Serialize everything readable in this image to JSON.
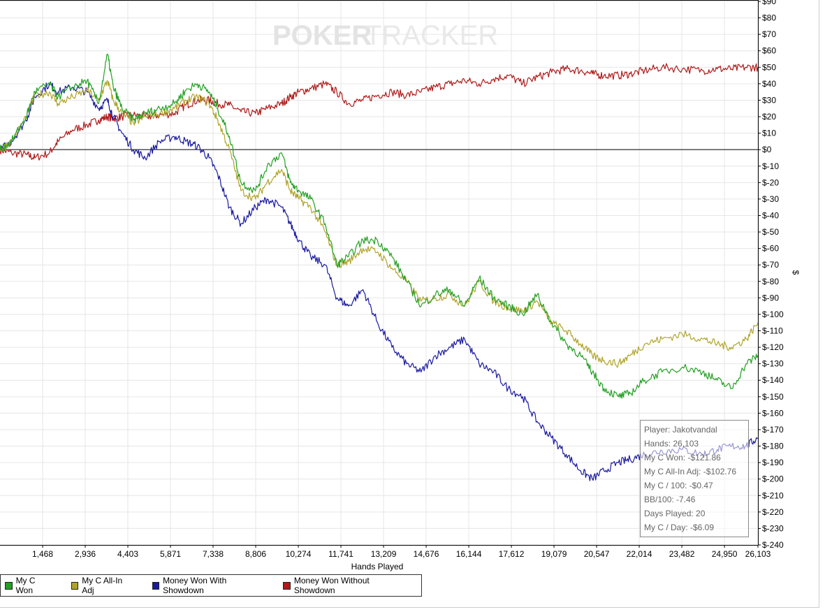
{
  "watermark": {
    "part1": "POKER",
    "part2": "TRACKER"
  },
  "chart_data": {
    "type": "line",
    "xlabel": "Hands Played",
    "ylabel": "$",
    "xlim": [
      0,
      26103
    ],
    "ylim": [
      -240,
      90
    ],
    "x_ticks": [
      "1,468",
      "2,936",
      "4,403",
      "5,871",
      "7,338",
      "8,806",
      "10,274",
      "11,741",
      "13,209",
      "14,676",
      "16,144",
      "17,612",
      "19,079",
      "20,547",
      "22,014",
      "23,482",
      "24,950",
      "26,103"
    ],
    "x_tick_values": [
      1468,
      2936,
      4403,
      5871,
      7338,
      8806,
      10274,
      11741,
      13209,
      14676,
      16144,
      17612,
      19079,
      20547,
      22014,
      23482,
      24950,
      26103
    ],
    "y_ticks": [
      "$90",
      "$80",
      "$70",
      "$60",
      "$50",
      "$40",
      "$30",
      "$20",
      "$10",
      "$0",
      "$-10",
      "$-20",
      "$-30",
      "$-40",
      "$-50",
      "$-60",
      "$-70",
      "$-80",
      "$-90",
      "$-100",
      "$-110",
      "$-120",
      "$-130",
      "$-140",
      "$-150",
      "$-160",
      "$-170",
      "$-180",
      "$-190",
      "$-200",
      "$-210",
      "$-220",
      "$-230",
      "$-240"
    ],
    "y_tick_values": [
      90,
      80,
      70,
      60,
      50,
      40,
      30,
      20,
      10,
      0,
      -10,
      -20,
      -30,
      -40,
      -50,
      -60,
      -70,
      -80,
      -90,
      -100,
      -110,
      -120,
      -130,
      -140,
      -150,
      -160,
      -170,
      -180,
      -190,
      -200,
      -210,
      -220,
      -230,
      -240
    ],
    "grid": true,
    "legend_position": "bottom-left",
    "series": [
      {
        "name": "My C Won",
        "color": "#22a022",
        "x": [
          0,
          400,
          900,
          1200,
          1700,
          2000,
          2500,
          3000,
          3400,
          3700,
          3900,
          4200,
          4600,
          5000,
          5500,
          6000,
          6400,
          6800,
          7200,
          7500,
          7900,
          8300,
          8800,
          9200,
          9700,
          10000,
          10300,
          10700,
          11200,
          11600,
          12000,
          12500,
          13000,
          13500,
          14000,
          14500,
          15000,
          15500,
          16000,
          16500,
          17000,
          17500,
          18000,
          18500,
          19000,
          19500,
          20000,
          20400,
          20800,
          21300,
          21700,
          22200,
          22800,
          23500,
          24200,
          24700,
          25200,
          25700,
          26103
        ],
        "y": [
          0,
          5,
          20,
          35,
          40,
          32,
          38,
          42,
          28,
          58,
          38,
          25,
          18,
          22,
          25,
          28,
          36,
          40,
          35,
          25,
          8,
          -20,
          -25,
          -10,
          -2,
          -20,
          -25,
          -30,
          -45,
          -70,
          -65,
          -55,
          -55,
          -65,
          -80,
          -95,
          -88,
          -85,
          -95,
          -78,
          -90,
          -95,
          -100,
          -88,
          -105,
          -118,
          -125,
          -135,
          -145,
          -150,
          -148,
          -140,
          -135,
          -132,
          -135,
          -140,
          -145,
          -130,
          -125
        ]
      },
      {
        "name": "My C All-In Adj",
        "color": "#b0a428",
        "x": [
          0,
          400,
          900,
          1200,
          1700,
          2000,
          2500,
          3000,
          3400,
          3700,
          3900,
          4200,
          4600,
          5000,
          5500,
          6000,
          6400,
          6800,
          7200,
          7500,
          7900,
          8300,
          8800,
          9200,
          9700,
          10000,
          10300,
          10700,
          11200,
          11600,
          12000,
          12500,
          13000,
          13500,
          14000,
          14500,
          15000,
          15500,
          16000,
          16500,
          17000,
          17500,
          18000,
          18500,
          19000,
          19500,
          20000,
          20400,
          20800,
          21300,
          21700,
          22200,
          22800,
          23500,
          24200,
          24700,
          25200,
          25700,
          26103
        ],
        "y": [
          0,
          5,
          20,
          33,
          35,
          28,
          32,
          36,
          30,
          42,
          30,
          22,
          16,
          20,
          22,
          25,
          30,
          32,
          28,
          18,
          0,
          -25,
          -30,
          -20,
          -12,
          -25,
          -30,
          -35,
          -50,
          -70,
          -68,
          -60,
          -62,
          -72,
          -80,
          -92,
          -90,
          -88,
          -95,
          -80,
          -92,
          -96,
          -98,
          -92,
          -105,
          -110,
          -118,
          -125,
          -128,
          -130,
          -125,
          -118,
          -115,
          -112,
          -115,
          -118,
          -120,
          -115,
          -105
        ]
      },
      {
        "name": "Money Won With Showdown",
        "color": "#1a1aa0",
        "x": [
          0,
          400,
          900,
          1200,
          1700,
          2000,
          2500,
          3000,
          3400,
          3700,
          3900,
          4200,
          4600,
          5000,
          5500,
          6000,
          6400,
          6800,
          7200,
          7500,
          7900,
          8300,
          8800,
          9200,
          9700,
          10000,
          10300,
          10700,
          11200,
          11600,
          12000,
          12500,
          13000,
          13500,
          14000,
          14500,
          15000,
          15500,
          16000,
          16500,
          17000,
          17500,
          18000,
          18500,
          19000,
          19500,
          20000,
          20400,
          20800,
          21300,
          21700,
          22200,
          22800,
          23500,
          24200,
          24700,
          25200,
          25700,
          26103
        ],
        "y": [
          0,
          5,
          18,
          32,
          40,
          35,
          38,
          35,
          25,
          30,
          20,
          10,
          0,
          -5,
          5,
          8,
          5,
          2,
          -5,
          -15,
          -35,
          -45,
          -35,
          -30,
          -35,
          -45,
          -55,
          -65,
          -70,
          -90,
          -95,
          -85,
          -105,
          -120,
          -130,
          -135,
          -125,
          -120,
          -115,
          -130,
          -135,
          -145,
          -150,
          -165,
          -175,
          -185,
          -195,
          -200,
          -195,
          -190,
          -188,
          -185,
          -183,
          -182,
          -185,
          -182,
          -180,
          -180,
          -175
        ]
      },
      {
        "name": "Money Won Without Showdown",
        "color": "#b01a1a",
        "x": [
          0,
          400,
          900,
          1200,
          1700,
          2000,
          2500,
          3000,
          3400,
          3700,
          3900,
          4200,
          4600,
          5000,
          5500,
          6000,
          6400,
          6800,
          7200,
          7500,
          7900,
          8300,
          8800,
          9200,
          9700,
          10000,
          10300,
          10700,
          11200,
          11600,
          12000,
          12500,
          13000,
          13500,
          14000,
          14500,
          15000,
          15500,
          16000,
          16500,
          17000,
          17500,
          18000,
          18500,
          19000,
          19500,
          20000,
          20400,
          20800,
          21300,
          21700,
          22200,
          22800,
          23500,
          24200,
          24700,
          25200,
          25700,
          26103
        ],
        "y": [
          0,
          -2,
          -3,
          -5,
          -2,
          5,
          12,
          15,
          18,
          20,
          19,
          20,
          21,
          20,
          21,
          22,
          27,
          30,
          30,
          28,
          27,
          23,
          22,
          25,
          28,
          32,
          35,
          37,
          40,
          35,
          28,
          30,
          33,
          35,
          33,
          35,
          38,
          40,
          42,
          40,
          43,
          45,
          40,
          44,
          47,
          49,
          48,
          46,
          45,
          45,
          46,
          48,
          50,
          49,
          48,
          49,
          49,
          50,
          50
        ]
      }
    ]
  },
  "legend": [
    {
      "label": "My C Won",
      "color": "#22a022"
    },
    {
      "label": "My C All-In Adj",
      "color": "#b0a428"
    },
    {
      "label": "Money Won With Showdown",
      "color": "#1a1aa0"
    },
    {
      "label": "Money Won Without Showdown",
      "color": "#b01a1a"
    }
  ],
  "tooltip": {
    "player": "Player: Jakotvandal",
    "hands": "Hands: 26,103",
    "won": "My C Won: -$121.86",
    "allin": "My C All-In Adj: -$102.76",
    "per100": "My C / 100: -$0.47",
    "bb100": "BB/100: -7.46",
    "days": "Days Played: 20",
    "perday": "My C / Day: -$6.09"
  }
}
